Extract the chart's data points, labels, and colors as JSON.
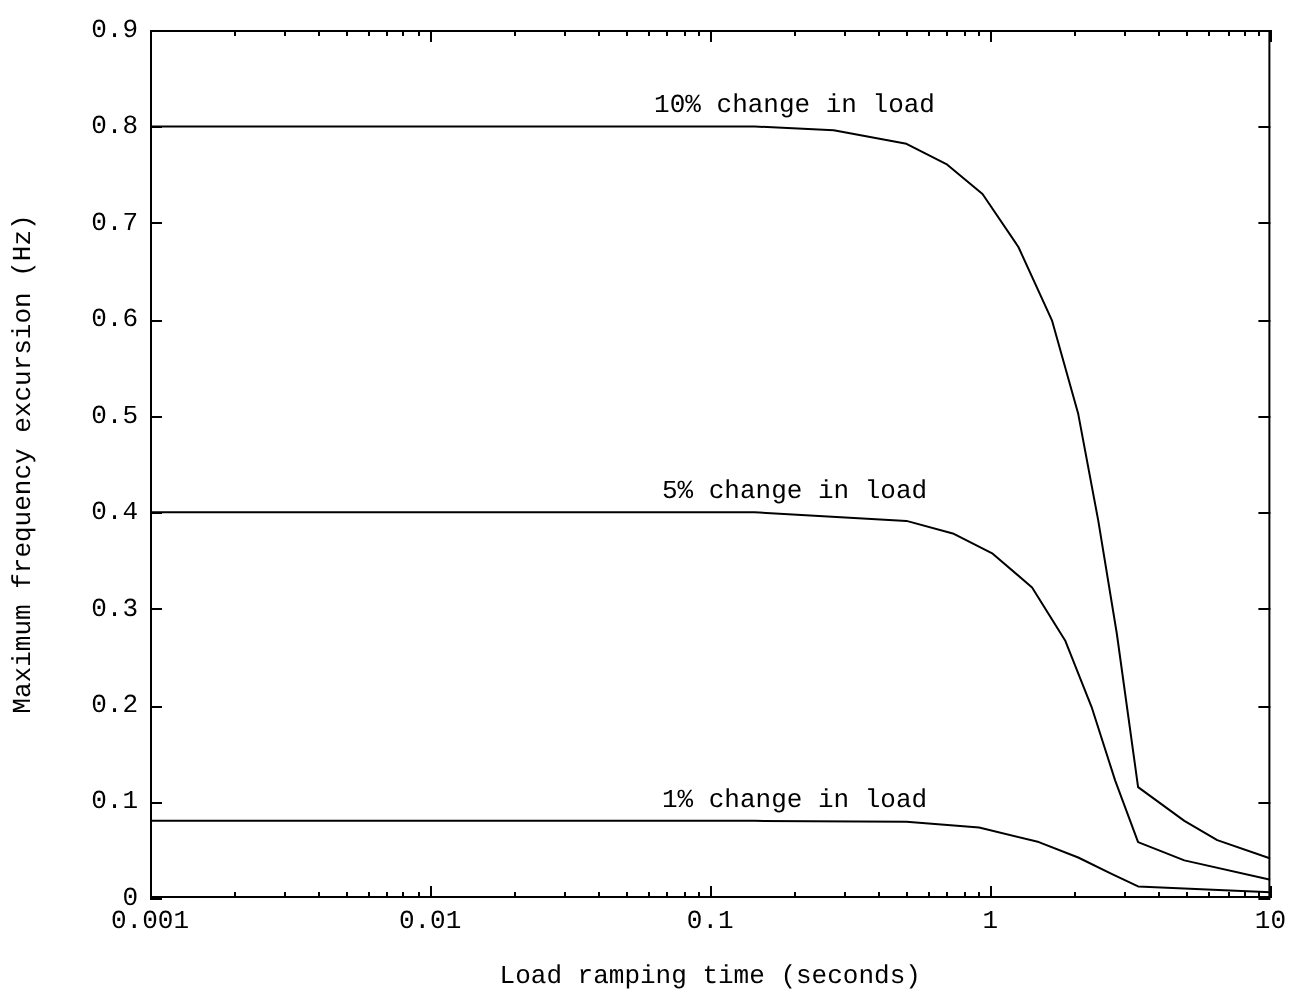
{
  "chart_data": {
    "type": "line",
    "xlabel": "Load ramping time (seconds)",
    "ylabel": "Maximum frequency excursion (Hz)",
    "log": "x",
    "grid": false,
    "legend": false,
    "marker": "none",
    "line_style": "solid",
    "xlim": [
      0.001,
      10
    ],
    "ylim": [
      0,
      0.9
    ],
    "xticks": [
      0.001,
      {
        "value": 0.002,
        "label": null
      },
      {
        "value": 0.003,
        "label": null
      },
      {
        "value": 0.004,
        "label": null
      },
      {
        "value": 0.005,
        "label": null
      },
      {
        "value": 0.006,
        "label": null
      },
      {
        "value": 0.007,
        "label": null
      },
      {
        "value": 0.008,
        "label": null
      },
      {
        "value": 0.009,
        "label": null
      },
      0.01,
      {
        "value": 0.02,
        "label": null
      },
      {
        "value": 0.03,
        "label": null
      },
      {
        "value": 0.04,
        "label": null
      },
      {
        "value": 0.05,
        "label": null
      },
      {
        "value": 0.06,
        "label": null
      },
      {
        "value": 0.07,
        "label": null
      },
      {
        "value": 0.08,
        "label": null
      },
      {
        "value": 0.09,
        "label": null
      },
      0.1,
      {
        "value": 0.2,
        "label": null
      },
      {
        "value": 0.3,
        "label": null
      },
      {
        "value": 0.4,
        "label": null
      },
      {
        "value": 0.5,
        "label": null
      },
      {
        "value": 0.6,
        "label": null
      },
      {
        "value": 0.7,
        "label": null
      },
      {
        "value": 0.8,
        "label": null
      },
      {
        "value": 0.9,
        "label": null
      },
      1,
      {
        "value": 2,
        "label": null
      },
      {
        "value": 3,
        "label": null
      },
      {
        "value": 4,
        "label": null
      },
      {
        "value": 5,
        "label": null
      },
      {
        "value": 6,
        "label": null
      },
      {
        "value": 7,
        "label": null
      },
      {
        "value": 8,
        "label": null
      },
      {
        "value": 9,
        "label": null
      },
      10
    ],
    "yticks": [
      0,
      0.1,
      0.2,
      0.3,
      0.4,
      0.5,
      0.6,
      0.7,
      0.8,
      0.9
    ],
    "series": [
      {
        "name": "10% change in load",
        "color": "#000000",
        "x": [
          0.001,
          0.144,
          0.276,
          0.502,
          0.697,
          0.938,
          1.26,
          1.66,
          2.06,
          2.43,
          2.83,
          3.37,
          4.93,
          6.46,
          10
        ],
        "values": [
          0.8,
          0.8,
          0.796,
          0.782,
          0.761,
          0.73,
          0.675,
          0.599,
          0.502,
          0.391,
          0.274,
          0.115,
          0.08,
          0.06,
          0.041
        ]
      },
      {
        "name": "5% change in load",
        "color": "#000000",
        "x": [
          0.001,
          0.144,
          0.502,
          0.735,
          1.02,
          1.41,
          1.85,
          2.3,
          2.79,
          3.37,
          4.93,
          10
        ],
        "values": [
          0.4,
          0.4,
          0.391,
          0.378,
          0.357,
          0.322,
          0.267,
          0.198,
          0.122,
          0.058,
          0.039,
          0.019
        ]
      },
      {
        "name": "1% change in load",
        "color": "#000000",
        "x": [
          0.001,
          0.144,
          0.502,
          0.912,
          1.49,
          2.06,
          2.71,
          3.37,
          10
        ],
        "values": [
          0.08,
          0.08,
          0.079,
          0.073,
          0.058,
          0.042,
          0.025,
          0.012,
          0.006
        ]
      }
    ]
  }
}
